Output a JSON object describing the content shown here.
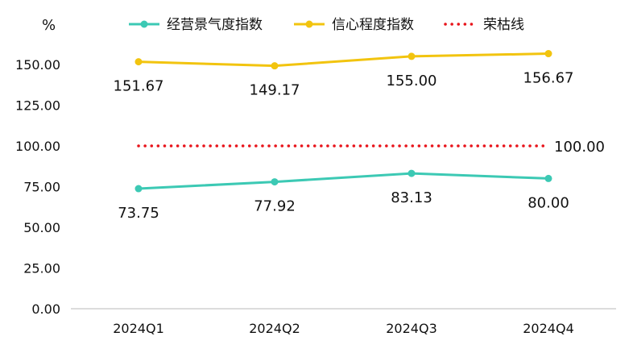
{
  "chart_data": {
    "type": "line",
    "unit_label": "%",
    "categories": [
      "2024Q1",
      "2024Q2",
      "2024Q3",
      "2024Q4"
    ],
    "ylim": [
      0,
      150
    ],
    "yticks": [
      "0.00",
      "25.00",
      "50.00",
      "75.00",
      "100.00",
      "125.00",
      "150.00"
    ],
    "ytick_values": [
      0,
      25,
      50,
      75,
      100,
      125,
      150
    ],
    "grid": false,
    "legend_position": "top",
    "series": [
      {
        "name": "经营景气度指数",
        "color": "#3CC9B4",
        "style": "line-marker",
        "values": [
          73.75,
          77.92,
          83.13,
          80.0
        ],
        "labels": [
          "73.75",
          "77.92",
          "83.13",
          "80.00"
        ]
      },
      {
        "name": "信心程度指数",
        "color": "#F2C40F",
        "style": "line-marker",
        "values": [
          151.67,
          149.17,
          155.0,
          156.67
        ],
        "labels": [
          "151.67",
          "149.17",
          "155.00",
          "156.67"
        ]
      },
      {
        "name": "荣枯线",
        "color": "#E8141B",
        "style": "dotted",
        "values": [
          100,
          100,
          100,
          100
        ],
        "labels": [
          "100.00"
        ]
      }
    ]
  }
}
